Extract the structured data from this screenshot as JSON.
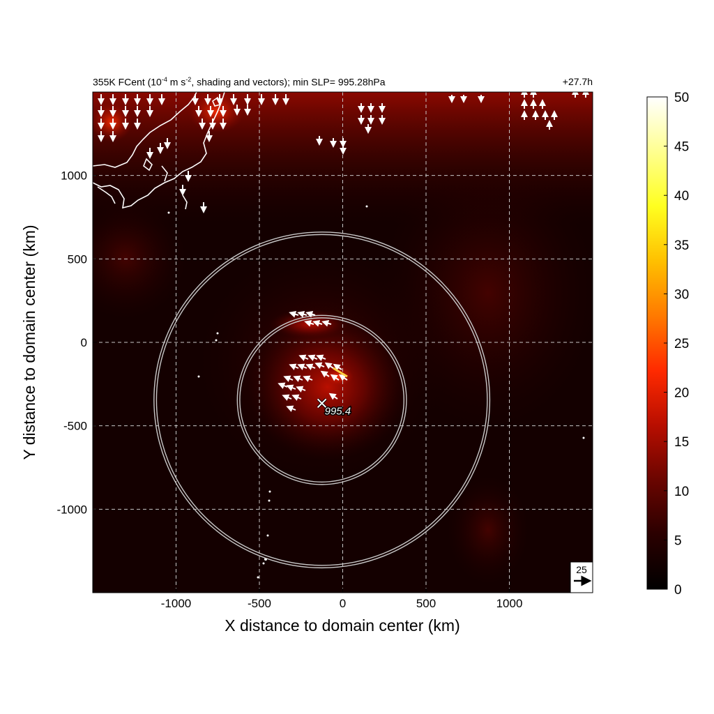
{
  "header": {
    "title_prefix": "355K FCent (10",
    "title_exp1": "-4",
    "title_mid": " m s",
    "title_exp2": "-2",
    "title_suffix": ", shading and vectors); min SLP= 995.28hPa",
    "forecast_time": "+27.7h"
  },
  "chart_data": {
    "type": "heatmap",
    "xlabel": "X distance to domain center (km)",
    "ylabel": "Y distance to domain center (km)",
    "xlim": [
      -1500,
      1500
    ],
    "ylim": [
      -1500,
      1500
    ],
    "xticks": [
      -1000,
      -500,
      0,
      500,
      1000
    ],
    "xtick_labels": [
      "-1000",
      "-500",
      "0",
      "500",
      "1000"
    ],
    "yticks": [
      1000,
      500,
      0,
      -500,
      -1000
    ],
    "ytick_labels": [
      "1000",
      "500",
      "0",
      "-500",
      "-1000"
    ],
    "grid": true,
    "colorbar": {
      "min": 0,
      "max": 50,
      "ticks": [
        0,
        5,
        10,
        15,
        20,
        25,
        30,
        35,
        40,
        45,
        50
      ],
      "tick_labels": [
        "0",
        "5",
        "10",
        "15",
        "20",
        "25",
        "30",
        "35",
        "40",
        "45",
        "50"
      ],
      "colors": [
        "#000000",
        "#2a0000",
        "#6a0500",
        "#b80e00",
        "#ff2a00",
        "#ff7a00",
        "#ffc000",
        "#ffff20",
        "#ffff90",
        "#ffffff"
      ]
    },
    "storm_center": {
      "x": -125,
      "y": -365,
      "label": "995.4"
    },
    "circles": [
      {
        "cx": -125,
        "cy": -345,
        "r": 500
      },
      {
        "cx": -125,
        "cy": -345,
        "r": 1000
      }
    ],
    "reference_vector": {
      "label": "25"
    },
    "colors": {
      "vector": "#ffffff",
      "circle": "#c8c8c8",
      "coastline": "#ffffff",
      "grid": "#c8c8c8"
    }
  }
}
